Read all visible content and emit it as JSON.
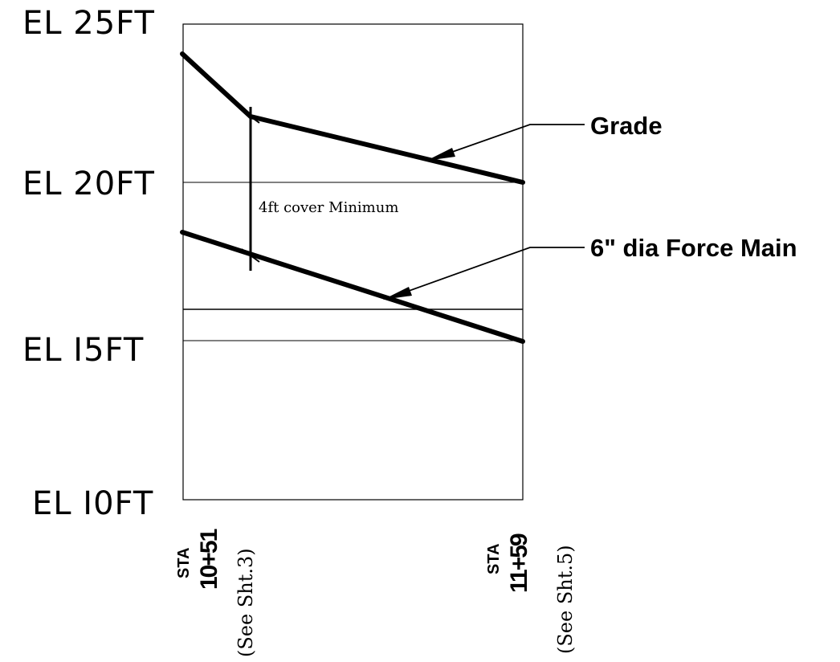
{
  "elevations": {
    "el25": "EL 25FT",
    "el20": "EL 20FT",
    "el15": "EL I5FT",
    "el10": "EL I0FT"
  },
  "callouts": {
    "grade": "Grade",
    "force_main": "6\" dia Force Main",
    "cover_note": "4ft cover Minimum"
  },
  "stations": {
    "left": {
      "prefix": "STA",
      "value": "10+51",
      "sheet": "(See Sht.3)"
    },
    "right": {
      "prefix": "STA",
      "value": "11+59",
      "sheet": "(See Sht.5)"
    }
  },
  "colors": {
    "line": "#000000",
    "background": "#ffffff"
  }
}
